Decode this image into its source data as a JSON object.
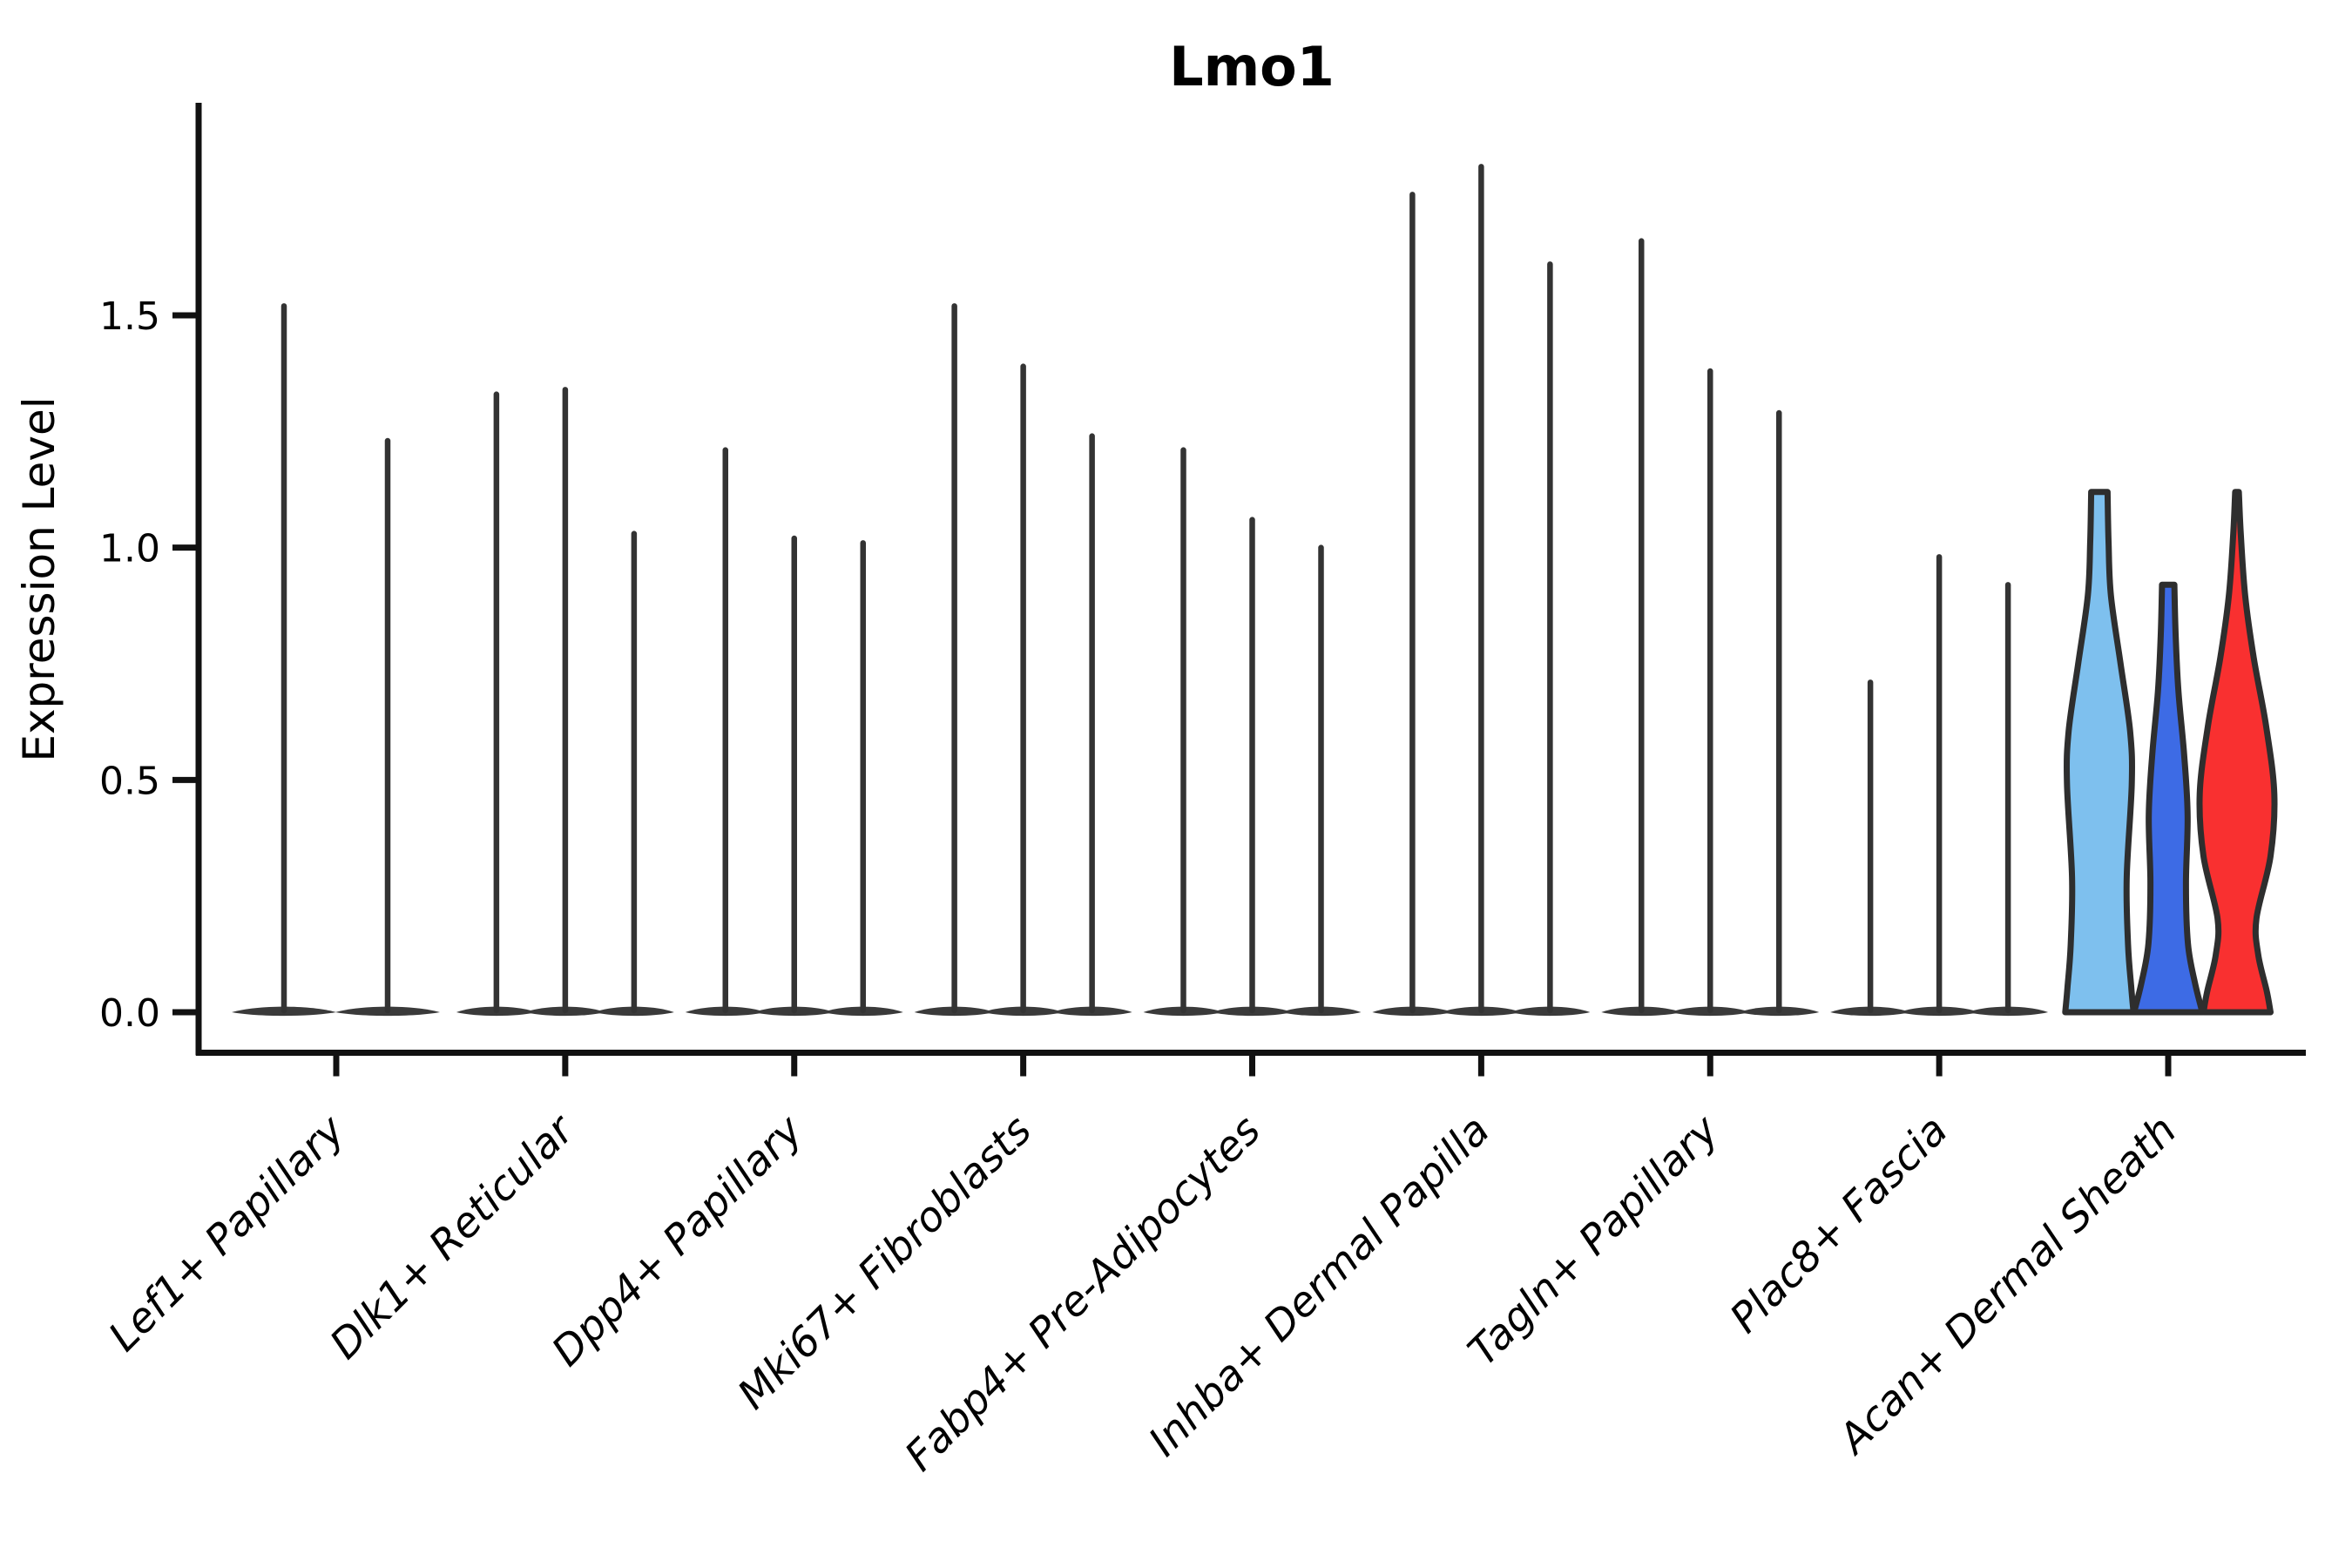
{
  "title": "Lmo1",
  "ylabel": "Expression Level",
  "chart_data": {
    "type": "violin",
    "title": "Lmo1",
    "xlabel": "",
    "ylabel": "Expression Level",
    "ylim": [
      -0.09,
      1.96
    ],
    "yticks": [
      "0.0",
      "0.5",
      "1.0",
      "1.5"
    ],
    "ytick_values": [
      0.0,
      0.5,
      1.0,
      1.5
    ],
    "grid": "off",
    "legend": "none",
    "x_label_rotation_deg": 45,
    "categories": [
      "Lef1+ Papillary",
      "Dlk1+ Reticular",
      "Dpp4+ Papillary",
      "Mki67+ Fibroblasts",
      "Fabp4+ Pre-Adipocytes",
      "Inhba+ Dermal Papilla",
      "Tagln+ Papillary",
      "Plac8+ Fascia",
      "Acan+ Dermal Sheath"
    ],
    "colors": {
      "spike": "#333333",
      "outline": "#2e2e2e",
      "axis": "#111111",
      "highlight_lightblue": "#7EC0EE",
      "highlight_darkblue": "#3D6BE5",
      "highlight_red": "#F93030"
    },
    "groups": [
      {
        "category": "Lef1+ Papillary",
        "violins": [
          {
            "style": "spike",
            "max": 1.52
          },
          {
            "style": "spike",
            "max": 1.23
          }
        ]
      },
      {
        "category": "Dlk1+ Reticular",
        "violins": [
          {
            "style": "spike",
            "max": 1.33
          },
          {
            "style": "spike",
            "max": 1.34
          },
          {
            "style": "spike",
            "max": 1.03
          }
        ]
      },
      {
        "category": "Dpp4+ Papillary",
        "violins": [
          {
            "style": "spike",
            "max": 1.21
          },
          {
            "style": "spike",
            "max": 1.02
          },
          {
            "style": "spike",
            "max": 1.01
          }
        ]
      },
      {
        "category": "Mki67+ Fibroblasts",
        "violins": [
          {
            "style": "spike",
            "max": 1.52
          },
          {
            "style": "spike",
            "max": 1.39
          },
          {
            "style": "spike",
            "max": 1.24
          }
        ]
      },
      {
        "category": "Fabp4+ Pre-Adipocytes",
        "violins": [
          {
            "style": "spike",
            "max": 1.21
          },
          {
            "style": "spike",
            "max": 1.06
          },
          {
            "style": "spike",
            "max": 1.0
          }
        ]
      },
      {
        "category": "Inhba+ Dermal Papilla",
        "violins": [
          {
            "style": "spike",
            "max": 1.76
          },
          {
            "style": "spike",
            "max": 1.82
          },
          {
            "style": "spike",
            "max": 1.61
          }
        ]
      },
      {
        "category": "Tagln+ Papillary",
        "violins": [
          {
            "style": "spike",
            "max": 1.66
          },
          {
            "style": "spike",
            "max": 1.38
          },
          {
            "style": "spike",
            "max": 1.29
          }
        ]
      },
      {
        "category": "Plac8+ Fascia",
        "violins": [
          {
            "style": "spike",
            "max": 0.71
          },
          {
            "style": "spike",
            "max": 0.98
          },
          {
            "style": "spike",
            "max": 0.92
          }
        ]
      },
      {
        "category": "Acan+ Dermal Sheath",
        "violins": [
          {
            "style": "filled",
            "max": 1.12,
            "color": "#7EC0EE",
            "width": 0.98,
            "profile": [
              [
                0,
                1.0
              ],
              [
                0.05,
                0.93
              ],
              [
                0.13,
                0.84
              ],
              [
                0.26,
                0.8
              ],
              [
                0.44,
                0.95
              ],
              [
                0.54,
                0.9
              ],
              [
                0.67,
                0.62
              ],
              [
                0.8,
                0.34
              ],
              [
                0.9,
                0.27
              ],
              [
                1.0,
                0.24
              ]
            ]
          },
          {
            "style": "filled",
            "max": 0.92,
            "color": "#3D6BE5",
            "width": 0.98,
            "profile": [
              [
                0,
                1.0
              ],
              [
                0.07,
                0.78
              ],
              [
                0.16,
                0.58
              ],
              [
                0.3,
                0.52
              ],
              [
                0.46,
                0.57
              ],
              [
                0.6,
                0.47
              ],
              [
                0.75,
                0.3
              ],
              [
                0.88,
                0.22
              ],
              [
                1.0,
                0.18
              ]
            ]
          },
          {
            "style": "filled",
            "max": 1.12,
            "color": "#F93030",
            "width": 1.07,
            "profile": [
              [
                0,
                0.9
              ],
              [
                0.04,
                0.8
              ],
              [
                0.11,
                0.57
              ],
              [
                0.18,
                0.52
              ],
              [
                0.3,
                0.9
              ],
              [
                0.42,
                1.0
              ],
              [
                0.55,
                0.78
              ],
              [
                0.68,
                0.45
              ],
              [
                0.8,
                0.22
              ],
              [
                0.92,
                0.1
              ],
              [
                1.0,
                0.05
              ]
            ]
          }
        ]
      }
    ]
  }
}
